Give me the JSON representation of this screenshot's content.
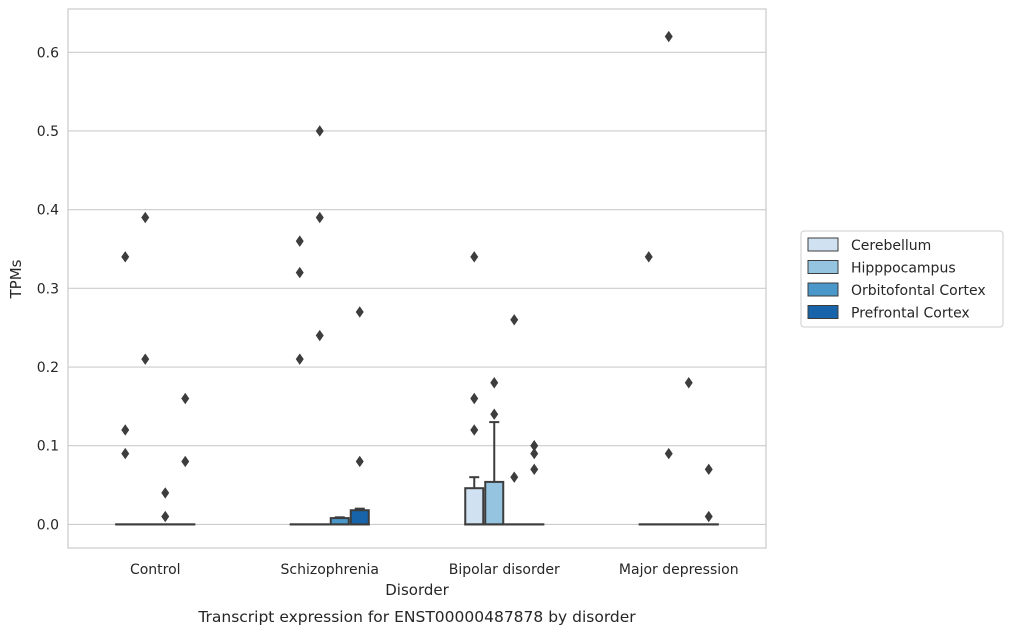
{
  "chart_data": {
    "type": "box",
    "title": "",
    "caption": "Transcript expression for ENST00000487878 by disorder",
    "xlabel": "Disorder",
    "ylabel": "TPMs",
    "ylim": [
      -0.03,
      0.655
    ],
    "yticks": [
      0.0,
      0.1,
      0.2,
      0.3,
      0.4,
      0.5,
      0.6
    ],
    "ytick_labels": [
      "0.0",
      "0.1",
      "0.2",
      "0.3",
      "0.4",
      "0.5",
      "0.6"
    ],
    "grid": "horizontal",
    "legend_position": "right",
    "categories": [
      "Control",
      "Schizophrenia",
      "Bipolar disorder",
      "Major depression"
    ],
    "series": [
      {
        "name": "Cerebellum",
        "color": "#d0e1f2",
        "boxes": [
          {
            "q1": 0,
            "median": 0,
            "q3": 0,
            "whisker_low": 0,
            "whisker_high": 0,
            "outliers": [
              0.34,
              0.12,
              0.09
            ]
          },
          {
            "q1": 0,
            "median": 0,
            "q3": 0,
            "whisker_low": 0,
            "whisker_high": 0,
            "outliers": [
              0.36,
              0.32,
              0.21
            ]
          },
          {
            "q1": 0,
            "median": 0,
            "q3": 0.046,
            "whisker_low": 0,
            "whisker_high": 0.06,
            "outliers": [
              0.34,
              0.16,
              0.12
            ]
          },
          {
            "q1": 0,
            "median": 0,
            "q3": 0,
            "whisker_low": 0,
            "whisker_high": 0,
            "outliers": [
              0.34
            ]
          }
        ]
      },
      {
        "name": "Hipppocampus",
        "color": "#94c4df",
        "boxes": [
          {
            "q1": 0,
            "median": 0,
            "q3": 0,
            "whisker_low": 0,
            "whisker_high": 0,
            "outliers": [
              0.39,
              0.21
            ]
          },
          {
            "q1": 0,
            "median": 0,
            "q3": 0,
            "whisker_low": 0,
            "whisker_high": 0,
            "outliers": [
              0.5,
              0.39,
              0.24
            ]
          },
          {
            "q1": 0,
            "median": 0,
            "q3": 0.054,
            "whisker_low": 0,
            "whisker_high": 0.13,
            "outliers": [
              0.18,
              0.14
            ]
          },
          {
            "q1": 0,
            "median": 0,
            "q3": 0,
            "whisker_low": 0,
            "whisker_high": 0,
            "outliers": [
              0.62,
              0.09
            ]
          }
        ]
      },
      {
        "name": "Orbitofontal Cortex",
        "color": "#4a98c9",
        "boxes": [
          {
            "q1": 0,
            "median": 0,
            "q3": 0,
            "whisker_low": 0,
            "whisker_high": 0,
            "outliers": [
              0.04,
              0.01
            ]
          },
          {
            "q1": 0,
            "median": 0,
            "q3": 0.008,
            "whisker_low": 0,
            "whisker_high": 0.009,
            "outliers": []
          },
          {
            "q1": 0,
            "median": 0,
            "q3": 0,
            "whisker_low": 0,
            "whisker_high": 0,
            "outliers": [
              0.26,
              0.06
            ]
          },
          {
            "q1": 0,
            "median": 0,
            "q3": 0,
            "whisker_low": 0,
            "whisker_high": 0,
            "outliers": [
              0.18
            ]
          }
        ]
      },
      {
        "name": "Prefrontal Cortex",
        "color": "#1764ab",
        "boxes": [
          {
            "q1": 0,
            "median": 0,
            "q3": 0,
            "whisker_low": 0,
            "whisker_high": 0,
            "outliers": [
              0.16,
              0.08
            ]
          },
          {
            "q1": 0,
            "median": 0,
            "q3": 0.018,
            "whisker_low": 0,
            "whisker_high": 0.02,
            "outliers": [
              0.27,
              0.08
            ]
          },
          {
            "q1": 0,
            "median": 0,
            "q3": 0,
            "whisker_low": 0,
            "whisker_high": 0,
            "outliers": [
              0.1,
              0.09,
              0.07
            ]
          },
          {
            "q1": 0,
            "median": 0,
            "q3": 0,
            "whisker_low": 0,
            "whisker_high": 0,
            "outliers": [
              0.07,
              0.01
            ]
          }
        ]
      }
    ]
  }
}
